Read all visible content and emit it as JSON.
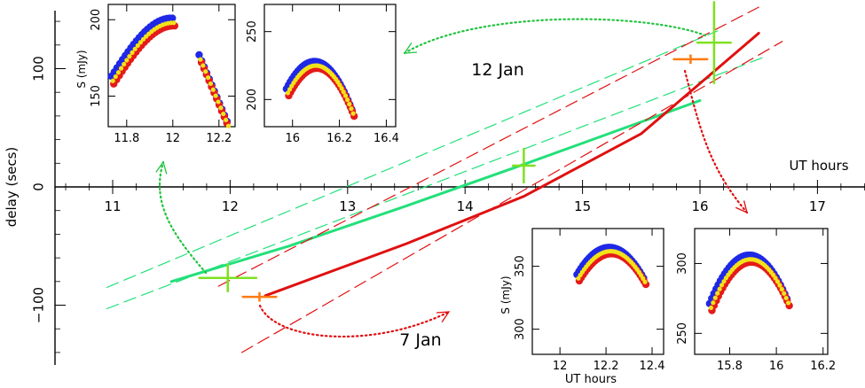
{
  "chart_data": [
    {
      "type": "line",
      "title": "",
      "xlabel": "UT hours",
      "ylabel": "delay (secs)",
      "xlim": [
        10.6,
        17.5
      ],
      "ylim": [
        -145,
        150
      ],
      "x_ticks": [
        11,
        12,
        13,
        14,
        15,
        16,
        17
      ],
      "y_ticks": [
        -100,
        0,
        100
      ],
      "grid": false,
      "colors": {
        "12 Jan": "#22e07a",
        "7 Jan": "#e01010",
        "cross_12jan": "#7ee020",
        "cross_7jan": "#ff7a10"
      },
      "annotations": [
        "12 Jan",
        "7 Jan"
      ],
      "series": [
        {
          "name": "12 Jan",
          "style": "solid",
          "x": [
            11.5,
            12.5,
            13.5,
            14.5,
            15.5,
            16.0
          ],
          "y": [
            -80,
            -50,
            -16,
            19,
            55,
            73
          ]
        },
        {
          "name": "12 Jan",
          "style": "dashed-upper",
          "x": [
            10.95,
            16.15
          ],
          "y": [
            -85,
            132
          ]
        },
        {
          "name": "12 Jan",
          "style": "dashed-lower",
          "x": [
            10.95,
            16.55
          ],
          "y": [
            -103,
            110
          ]
        },
        {
          "name": "7 Jan",
          "style": "solid",
          "x": [
            12.3,
            13.5,
            14.5,
            15.5,
            16.5
          ],
          "y": [
            -92,
            -48,
            -8,
            45,
            130
          ]
        },
        {
          "name": "7 Jan",
          "style": "dashed-upper",
          "x": [
            11.9,
            16.5
          ],
          "y": [
            -84,
            152
          ]
        },
        {
          "name": "7 Jan",
          "style": "dashed-lower",
          "x": [
            12.1,
            16.7
          ],
          "y": [
            -140,
            123
          ]
        }
      ],
      "crosses": [
        {
          "name": "12 Jan",
          "x": 11.98,
          "y": -77,
          "xerr": 0.25,
          "yerr": 12
        },
        {
          "name": "12 Jan",
          "x": 14.5,
          "y": 18,
          "xerr": 0.1,
          "yerr": 15
        },
        {
          "name": "12 Jan",
          "x": 16.12,
          "y": 122,
          "xerr": 0.15,
          "yerr": 35
        },
        {
          "name": "7 Jan",
          "x": 12.25,
          "y": -93,
          "xerr": 0.15,
          "yerr": 4
        },
        {
          "name": "7 Jan",
          "x": 15.92,
          "y": 108,
          "xerr": 0.15,
          "yerr": 4
        }
      ]
    },
    {
      "type": "scatter",
      "ylabel": "S (mJy)",
      "x_ticks": [
        "11.8",
        "12",
        "12.2"
      ],
      "y_ticks": [
        "150",
        "200"
      ],
      "xlim": [
        11.72,
        12.27
      ],
      "ylim": [
        130,
        210
      ]
    },
    {
      "type": "scatter",
      "x_ticks": [
        "16",
        "16.2",
        "16.4"
      ],
      "y_ticks": [
        "200",
        "250"
      ],
      "xlim": [
        15.88,
        16.44
      ],
      "ylim": [
        180,
        270
      ]
    },
    {
      "type": "scatter",
      "xlabel": "UT hours",
      "ylabel": "S (mJy)",
      "x_ticks": [
        "12",
        "12.2",
        "12.4"
      ],
      "y_ticks": [
        "300",
        "350"
      ],
      "xlim": [
        11.88,
        12.45
      ],
      "ylim": [
        280,
        380
      ]
    },
    {
      "type": "scatter",
      "x_ticks": [
        "15.8",
        "16",
        "16.2"
      ],
      "y_ticks": [
        "250",
        "300"
      ],
      "xlim": [
        15.65,
        16.22
      ],
      "ylim": [
        235,
        325
      ]
    }
  ]
}
